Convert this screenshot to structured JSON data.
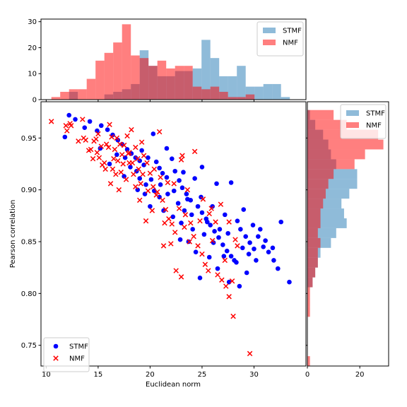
{
  "chart_data": {
    "type": "scatter",
    "xlabel": "Euclidean norm",
    "ylabel": "Pearson correlation",
    "xlim": [
      9.5,
      35
    ],
    "ylim": [
      0.73,
      0.985
    ],
    "xticks": [
      10,
      15,
      20,
      25,
      30
    ],
    "yticks": [
      0.75,
      0.8,
      0.85,
      0.9,
      0.95
    ],
    "legend_position": "lower-left",
    "colors": {
      "STMF": "#0000ff",
      "NMF": "#ff0000",
      "hist_STMF": "#1f77b4",
      "hist_NMF": "#ff0000"
    },
    "series": [
      {
        "name": "STMF",
        "marker": "circle",
        "points": [
          [
            12.2,
            0.972
          ],
          [
            12.8,
            0.968
          ],
          [
            11.8,
            0.951
          ],
          [
            14.2,
            0.966
          ],
          [
            15.3,
            0.962
          ],
          [
            15.9,
            0.958
          ],
          [
            16.4,
            0.953
          ],
          [
            16.9,
            0.948
          ],
          [
            17.3,
            0.944
          ],
          [
            17.8,
            0.939
          ],
          [
            18.2,
            0.935
          ],
          [
            18.6,
            0.931
          ],
          [
            19.0,
            0.928
          ],
          [
            19.4,
            0.924
          ],
          [
            19.8,
            0.931
          ],
          [
            20.3,
            0.954
          ],
          [
            20.6,
            0.927
          ],
          [
            20.9,
            0.921
          ],
          [
            21.2,
            0.916
          ],
          [
            21.6,
            0.912
          ],
          [
            22.1,
            0.93
          ],
          [
            22.4,
            0.918
          ],
          [
            22.8,
            0.909
          ],
          [
            23.1,
            0.902
          ],
          [
            23.5,
            0.896
          ],
          [
            23.9,
            0.89
          ],
          [
            24.3,
            0.911
          ],
          [
            24.6,
            0.884
          ],
          [
            25.0,
            0.878
          ],
          [
            25.4,
            0.872
          ],
          [
            25.8,
            0.866
          ],
          [
            26.2,
            0.86
          ],
          [
            26.6,
            0.854
          ],
          [
            27.0,
            0.847
          ],
          [
            27.4,
            0.841
          ],
          [
            27.8,
            0.836
          ],
          [
            28.3,
            0.83
          ],
          [
            28.7,
            0.862
          ],
          [
            29.2,
            0.855
          ],
          [
            29.6,
            0.849
          ],
          [
            30.0,
            0.843
          ],
          [
            30.4,
            0.855
          ],
          [
            30.9,
            0.845
          ],
          [
            31.4,
            0.84
          ],
          [
            31.9,
            0.832
          ],
          [
            32.3,
            0.824
          ],
          [
            32.6,
            0.869
          ],
          [
            33.4,
            0.811
          ],
          [
            26.4,
            0.906
          ],
          [
            27.8,
            0.907
          ],
          [
            25.0,
            0.922
          ],
          [
            23.2,
            0.917
          ],
          [
            21.6,
            0.94
          ],
          [
            19.2,
            0.938
          ],
          [
            18.7,
            0.918
          ],
          [
            17.6,
            0.931
          ],
          [
            16.8,
            0.934
          ],
          [
            20.1,
            0.91
          ],
          [
            21.0,
            0.905
          ],
          [
            22.3,
            0.899
          ],
          [
            23.6,
            0.891
          ],
          [
            24.9,
            0.893
          ],
          [
            26.0,
            0.884
          ],
          [
            27.2,
            0.876
          ],
          [
            28.4,
            0.87
          ],
          [
            29.0,
            0.881
          ],
          [
            29.9,
            0.866
          ],
          [
            30.6,
            0.862
          ],
          [
            31.1,
            0.851
          ],
          [
            31.8,
            0.844
          ],
          [
            20.0,
            0.884
          ],
          [
            21.3,
            0.88
          ],
          [
            22.2,
            0.874
          ],
          [
            23.0,
            0.868
          ],
          [
            24.1,
            0.862
          ],
          [
            25.2,
            0.857
          ],
          [
            26.1,
            0.849
          ],
          [
            27.1,
            0.836
          ],
          [
            28.1,
            0.832
          ],
          [
            29.3,
            0.82
          ],
          [
            22.9,
            0.852
          ],
          [
            24.4,
            0.84
          ],
          [
            25.7,
            0.835
          ],
          [
            26.5,
            0.824
          ],
          [
            27.6,
            0.811
          ],
          [
            28.6,
            0.807
          ],
          [
            24.8,
            0.815
          ],
          [
            23.7,
            0.85
          ],
          [
            19.5,
            0.896
          ],
          [
            20.9,
            0.893
          ],
          [
            18.1,
            0.922
          ],
          [
            19.0,
            0.911
          ],
          [
            19.6,
            0.905
          ],
          [
            20.4,
            0.899
          ],
          [
            21.7,
            0.896
          ],
          [
            22.7,
            0.887
          ],
          [
            23.3,
            0.88
          ],
          [
            24.0,
            0.876
          ],
          [
            25.5,
            0.869
          ],
          [
            26.7,
            0.862
          ],
          [
            27.5,
            0.858
          ],
          [
            28.9,
            0.844
          ],
          [
            29.5,
            0.838
          ],
          [
            30.2,
            0.832
          ],
          [
            18.8,
            0.9
          ],
          [
            17.5,
            0.913
          ],
          [
            16.1,
            0.925
          ],
          [
            15.2,
            0.94
          ],
          [
            14.9,
            0.957
          ],
          [
            13.7,
            0.96
          ]
        ]
      },
      {
        "name": "NMF",
        "marker": "x",
        "points": [
          [
            10.5,
            0.966
          ],
          [
            11.9,
            0.962
          ],
          [
            12.3,
            0.964
          ],
          [
            12.0,
            0.957
          ],
          [
            13.5,
            0.968
          ],
          [
            13.8,
            0.948
          ],
          [
            13.6,
            0.95
          ],
          [
            14.3,
            0.939
          ],
          [
            14.8,
            0.949
          ],
          [
            15.1,
            0.931
          ],
          [
            15.4,
            0.924
          ],
          [
            15.8,
            0.944
          ],
          [
            16.1,
            0.963
          ],
          [
            16.3,
            0.951
          ],
          [
            16.6,
            0.939
          ],
          [
            16.9,
            0.928
          ],
          [
            17.2,
            0.917
          ],
          [
            17.5,
            0.943
          ],
          [
            17.8,
            0.952
          ],
          [
            18.0,
            0.936
          ],
          [
            18.3,
            0.926
          ],
          [
            18.6,
            0.941
          ],
          [
            18.9,
            0.92
          ],
          [
            19.1,
            0.906
          ],
          [
            19.4,
            0.933
          ],
          [
            19.7,
            0.926
          ],
          [
            20.0,
            0.916
          ],
          [
            20.3,
            0.903
          ],
          [
            20.6,
            0.895
          ],
          [
            20.9,
            0.956
          ],
          [
            21.2,
            0.89
          ],
          [
            21.5,
            0.881
          ],
          [
            21.8,
            0.872
          ],
          [
            22.1,
            0.867
          ],
          [
            22.4,
            0.859
          ],
          [
            22.8,
            0.882
          ],
          [
            23.1,
            0.933
          ],
          [
            23.4,
            0.876
          ],
          [
            23.8,
            0.85
          ],
          [
            24.2,
            0.855
          ],
          [
            24.6,
            0.846
          ],
          [
            25.0,
            0.838
          ],
          [
            25.3,
            0.828
          ],
          [
            25.6,
            0.822
          ],
          [
            26.0,
            0.851
          ],
          [
            26.5,
            0.818
          ],
          [
            26.9,
            0.813
          ],
          [
            27.3,
            0.807
          ],
          [
            27.6,
            0.797
          ],
          [
            27.9,
            0.812
          ],
          [
            28.2,
            0.852
          ],
          [
            28.0,
            0.778
          ],
          [
            29.6,
            0.742
          ],
          [
            14.9,
            0.936
          ],
          [
            15.6,
            0.926
          ],
          [
            16.0,
            0.941
          ],
          [
            16.4,
            0.92
          ],
          [
            16.8,
            0.95
          ],
          [
            17.4,
            0.925
          ],
          [
            17.9,
            0.935
          ],
          [
            18.4,
            0.915
          ],
          [
            18.8,
            0.93
          ],
          [
            19.2,
            0.946
          ],
          [
            19.8,
            0.899
          ],
          [
            20.4,
            0.92
          ],
          [
            21.0,
            0.912
          ],
          [
            21.7,
            0.907
          ],
          [
            22.3,
            0.906
          ],
          [
            23.0,
            0.929
          ],
          [
            23.6,
            0.9
          ],
          [
            24.3,
            0.937
          ],
          [
            25.1,
            0.891
          ],
          [
            25.9,
            0.882
          ],
          [
            26.8,
            0.886
          ],
          [
            27.6,
            0.869
          ],
          [
            28.4,
            0.846
          ],
          [
            22.5,
            0.822
          ],
          [
            21.3,
            0.846
          ],
          [
            20.2,
            0.88
          ],
          [
            19.6,
            0.87
          ],
          [
            18.6,
            0.903
          ],
          [
            17.0,
            0.9
          ],
          [
            16.2,
            0.906
          ],
          [
            15.7,
            0.92
          ],
          [
            14.6,
            0.947
          ],
          [
            14.1,
            0.938
          ],
          [
            13.1,
            0.947
          ],
          [
            12.4,
            0.962
          ],
          [
            15.0,
            0.954
          ],
          [
            16.5,
            0.93
          ],
          [
            17.1,
            0.944
          ],
          [
            17.7,
            0.91
          ],
          [
            18.2,
            0.958
          ],
          [
            19.3,
            0.915
          ],
          [
            20.7,
            0.898
          ],
          [
            21.4,
            0.868
          ],
          [
            22.0,
            0.848
          ],
          [
            23.3,
            0.864
          ],
          [
            23.9,
            0.868
          ],
          [
            24.8,
            0.87
          ],
          [
            25.7,
            0.877
          ],
          [
            26.3,
            0.869
          ],
          [
            27.2,
            0.832
          ],
          [
            23.0,
            0.816
          ],
          [
            19.0,
            0.89
          ],
          [
            18.0,
            0.926
          ],
          [
            17.3,
            0.934
          ],
          [
            16.7,
            0.915
          ],
          [
            15.3,
            0.942
          ],
          [
            14.5,
            0.93
          ]
        ]
      }
    ],
    "histogram_x": {
      "bins": [
        10.5,
        11.35,
        12.2,
        13.05,
        13.9,
        14.75,
        15.6,
        16.45,
        17.3,
        18.15,
        19.0,
        19.85,
        20.7,
        21.55,
        22.4,
        23.25,
        24.1,
        24.95,
        25.8,
        26.65,
        27.5,
        28.35,
        29.2,
        30.05,
        30.9,
        31.75,
        32.6,
        33.45
      ],
      "yticks": [
        0,
        10,
        20,
        30
      ],
      "ylim": [
        0,
        31
      ],
      "legend_position": "upper-right",
      "series": [
        {
          "name": "STMF",
          "counts": [
            0,
            0,
            3,
            0,
            0,
            0,
            2,
            3,
            4,
            6,
            19,
            13,
            9,
            9,
            11,
            11,
            12,
            23,
            16,
            9,
            9,
            13,
            5,
            5,
            6,
            6,
            1
          ]
        },
        {
          "name": "NMF",
          "counts": [
            1,
            3,
            4,
            4,
            8,
            15,
            18,
            22,
            29,
            17,
            16,
            13,
            15,
            12,
            13,
            13,
            5,
            4,
            5,
            3,
            1,
            1,
            2,
            0,
            0,
            0,
            0
          ]
        }
      ]
    },
    "histogram_y": {
      "bins": [
        0.73,
        0.7395,
        0.749,
        0.7585,
        0.768,
        0.7775,
        0.787,
        0.7965,
        0.806,
        0.8155,
        0.825,
        0.8345,
        0.844,
        0.8535,
        0.863,
        0.8725,
        0.882,
        0.8915,
        0.901,
        0.9105,
        0.92,
        0.9295,
        0.939,
        0.9485,
        0.958,
        0.9675,
        0.977
      ],
      "xticks": [
        0,
        20
      ],
      "xlim": [
        0,
        31
      ],
      "legend_position": "upper-right",
      "series": [
        {
          "name": "STMF",
          "counts": [
            0,
            0,
            0,
            0,
            0,
            0,
            0,
            0,
            2,
            3,
            4,
            5,
            9,
            11,
            15,
            14,
            13,
            16,
            19,
            19,
            11,
            9,
            8,
            6,
            3,
            1
          ]
        },
        {
          "name": "NMF",
          "counts": [
            1,
            0,
            0,
            0,
            0,
            1,
            1,
            1,
            2,
            3,
            4,
            4,
            5,
            4,
            5,
            5,
            6,
            7,
            8,
            10,
            18,
            22,
            29,
            27,
            15,
            10
          ]
        }
      ]
    }
  }
}
